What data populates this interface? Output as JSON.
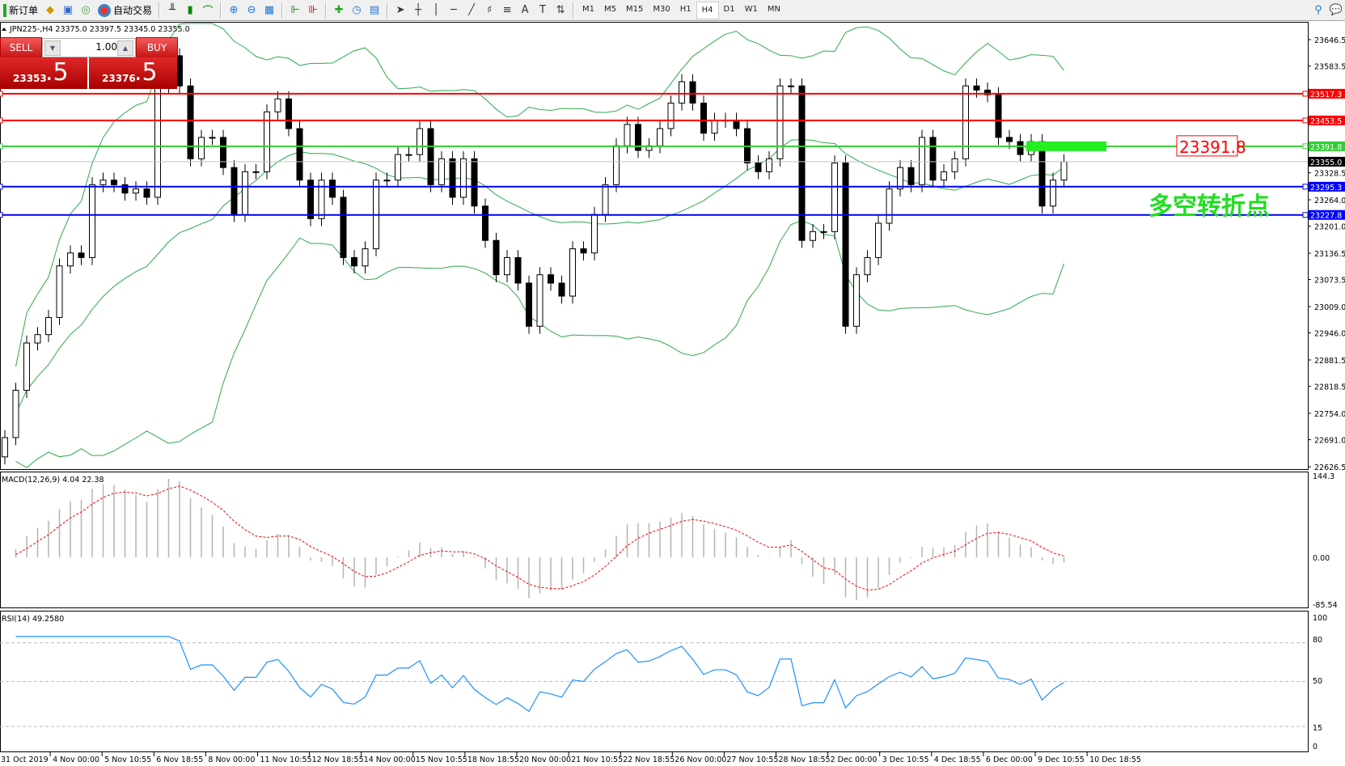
{
  "toolbar": {
    "new_order": "新订单",
    "auto_trading": "自动交易",
    "timeframes": [
      "M1",
      "M5",
      "M15",
      "M30",
      "H1",
      "H4",
      "D1",
      "W1",
      "MN"
    ],
    "active_timeframe": "H4"
  },
  "chart_header": "JPN225-,H4  23375.0 23397.5 23345.0 23355.0",
  "trade_panel": {
    "sell_label": "SELL",
    "buy_label": "BUY",
    "lot": "1.00",
    "sell_price_main": "23353",
    "sell_price_frac": ".5",
    "buy_price_main": "23376",
    "buy_price_frac": ".5"
  },
  "price_axis": [
    "23646.5",
    "23583.5",
    "23328.5",
    "23264.0",
    "23201.0",
    "23136.5",
    "23073.5",
    "23009.0",
    "22946.0",
    "22881.5",
    "22818.5",
    "22754.0",
    "22691.0",
    "22626.5"
  ],
  "price_range": [
    22626.5,
    23646.5
  ],
  "levels": [
    {
      "price": 23517.3,
      "label": "23517.3",
      "color": "#ff0000"
    },
    {
      "price": 23453.5,
      "label": "23453.5",
      "color": "#ff0000"
    },
    {
      "price": 23391.8,
      "label": "23391.8",
      "color": "#32cd32"
    },
    {
      "price": 23355.0,
      "label": "23355.0",
      "color": "#000000"
    },
    {
      "price": 23295.3,
      "label": "23295.3",
      "color": "#0000ff"
    },
    {
      "price": 23227.8,
      "label": "23227.8",
      "color": "#0000ff"
    }
  ],
  "annotation_price": "23391.8",
  "annotation_text": "多空转折点",
  "closes": [
    22696,
    22809,
    22922,
    22942,
    22983,
    23106,
    23137,
    23126,
    23300,
    23311,
    23300,
    23280,
    23290,
    23270,
    23536,
    23608,
    23536,
    23362,
    23413,
    23413,
    23341,
    23229,
    23331,
    23331,
    23474,
    23505,
    23434,
    23311,
    23219,
    23311,
    23270,
    23126,
    23106,
    23147,
    23311,
    23311,
    23372,
    23372,
    23434,
    23300,
    23362,
    23270,
    23362,
    23249,
    23167,
    23085,
    23126,
    23065,
    22962,
    23085,
    23065,
    23034,
    23147,
    23137,
    23229,
    23300,
    23393,
    23444,
    23382,
    23393,
    23434,
    23495,
    23546,
    23495,
    23423,
    23454,
    23454,
    23434,
    23352,
    23331,
    23362,
    23536,
    23536,
    23167,
    23188,
    23188,
    23352,
    22962,
    23085,
    23126,
    23208,
    23290,
    23341,
    23300,
    23413,
    23311,
    23331,
    23362,
    23536,
    23526,
    23515,
    23413,
    23403,
    23372,
    23403,
    23249,
    23311,
    23355
  ],
  "macd": {
    "label": "MACD(12,26,9) 4.04 22.38",
    "axis": [
      "144.3",
      "0.00",
      "-85.54"
    ]
  },
  "rsi": {
    "label": "RSI(14) 49.2580",
    "axis": [
      "100",
      "80",
      "50",
      "15",
      "0"
    ]
  },
  "time_axis": [
    "31 Oct 2019",
    "4 Nov 00:00",
    "5 Nov 10:55",
    "6 Nov 18:55",
    "8 Nov 00:00",
    "11 Nov 10:55",
    "12 Nov 18:55",
    "14 Nov 00:00",
    "15 Nov 10:55",
    "18 Nov 18:55",
    "20 Nov 00:00",
    "21 Nov 10:55",
    "22 Nov 18:55",
    "26 Nov 00:00",
    "27 Nov 10:55",
    "28 Nov 18:55",
    "2 Dec 00:00",
    "3 Dec 10:55",
    "4 Dec 18:55",
    "6 Dec 00:00",
    "9 Dec 10:55",
    "10 Dec 18:55"
  ],
  "colors": {
    "bands": "#2eaa4a",
    "macd_signal": "#ff0000",
    "macd_hist": "#b4b4b4",
    "rsi": "#1e90ff"
  }
}
